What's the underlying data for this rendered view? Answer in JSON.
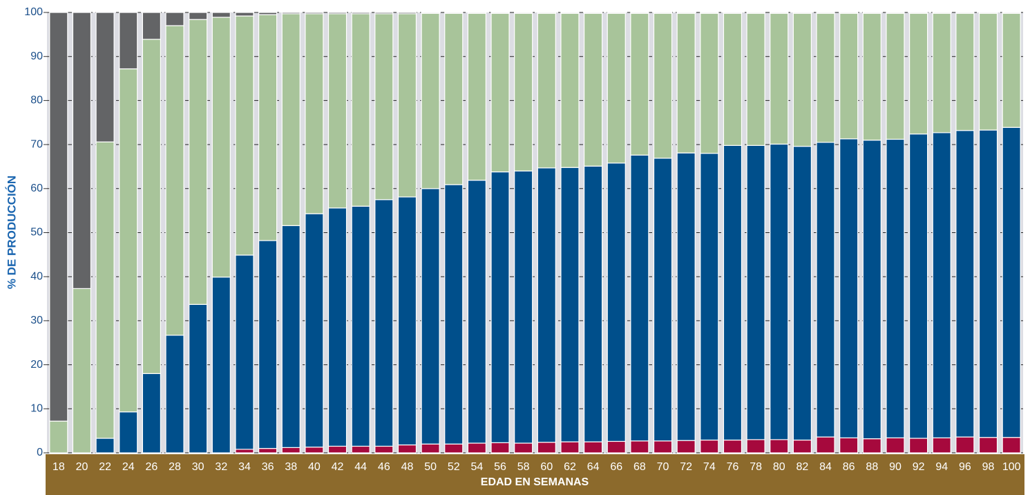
{
  "chart_data": {
    "type": "stacked_bar",
    "y_label": "% DE PRODUCCIÓN",
    "x_label": "EDAD EN SEMANAS",
    "categories": [
      "18",
      "20",
      "22",
      "24",
      "26",
      "28",
      "30",
      "32",
      "34",
      "36",
      "38",
      "40",
      "42",
      "44",
      "46",
      "48",
      "50",
      "52",
      "54",
      "56",
      "58",
      "60",
      "62",
      "64",
      "66",
      "68",
      "70",
      "72",
      "74",
      "76",
      "78",
      "80",
      "82",
      "84",
      "86",
      "88",
      "90",
      "92",
      "94",
      "96",
      "98",
      "100"
    ],
    "series": [
      {
        "color": "#a6093d",
        "values": [
          0,
          0,
          0,
          0,
          0,
          0,
          0,
          0,
          0.8,
          1,
          1.2,
          1.3,
          1.5,
          1.5,
          1.5,
          1.8,
          2,
          2,
          2.2,
          2.3,
          2.2,
          2.4,
          2.5,
          2.5,
          2.6,
          2.7,
          2.7,
          2.8,
          2.9,
          2.9,
          3,
          3,
          2.9,
          3.6,
          3.4,
          3.2,
          3.4,
          3.3,
          3.4,
          3.6,
          3.5,
          3.5
        ]
      },
      {
        "color": "#004f8b",
        "values": [
          0,
          0,
          3.3,
          9.3,
          18,
          26.7,
          33.7,
          39.9,
          44.1,
          47.2,
          50.4,
          53,
          54.1,
          54.5,
          56,
          56.3,
          58,
          58.9,
          59.7,
          61.5,
          61.8,
          62.3,
          62.3,
          62.6,
          63.2,
          64.9,
          64.2,
          65.3,
          65.1,
          66.9,
          66.8,
          67.1,
          66.7,
          66.9,
          67.9,
          67.8,
          67.8,
          69.1,
          69.3,
          69.6,
          69.8,
          70.4
        ]
      },
      {
        "color": "#a8c49a",
        "values": [
          7.2,
          37.3,
          67.3,
          77.9,
          75.9,
          70.3,
          64.7,
          59,
          54.3,
          51.3,
          48.1,
          45.4,
          44.1,
          43.7,
          42.2,
          41.6,
          39.8,
          38.9,
          37.9,
          36,
          35.8,
          35.1,
          35,
          34.7,
          34,
          32.2,
          32.9,
          31.7,
          31.8,
          30,
          30,
          29.7,
          30.2,
          29.3,
          28.5,
          28.8,
          28.6,
          27.4,
          27.1,
          26.6,
          26.5,
          25.9
        ]
      },
      {
        "color": "#636466",
        "values": [
          92.8,
          62.7,
          29.4,
          12.8,
          6.1,
          3,
          1.6,
          1.1,
          0.8,
          0.5,
          0.3,
          0.3,
          0.3,
          0.3,
          0.3,
          0.3,
          0.2,
          0.2,
          0.2,
          0.2,
          0.2,
          0.2,
          0.2,
          0.2,
          0.2,
          0.2,
          0.2,
          0.2,
          0.2,
          0.2,
          0.2,
          0.2,
          0.2,
          0.2,
          0.2,
          0.2,
          0.2,
          0.2,
          0.2,
          0.2,
          0.2,
          0.2
        ]
      }
    ],
    "ylim": [
      0,
      100
    ],
    "yticks": [
      0,
      10,
      20,
      30,
      40,
      50,
      60,
      70,
      80,
      90,
      100
    ],
    "grid": true
  }
}
